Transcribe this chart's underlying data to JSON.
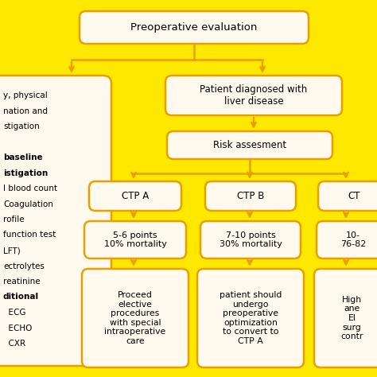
{
  "bg_color": "#FFE800",
  "box_fill": "#FFFAED",
  "box_edge": "#E8A000",
  "text_color": "#000000",
  "figsize": [
    4.74,
    4.74
  ],
  "dpi": 100,
  "left_text_lines": [
    [
      "y, physical",
      false
    ],
    [
      "nation and",
      false
    ],
    [
      "stigation",
      false
    ],
    [
      "",
      false
    ],
    [
      "baseline",
      true
    ],
    [
      "istigation",
      true
    ],
    [
      "l blood count",
      false
    ],
    [
      "Coagulation",
      false
    ],
    [
      "rofile",
      false
    ],
    [
      "function test",
      false
    ],
    [
      "LFT)",
      false
    ],
    [
      "ectrolytes",
      false
    ],
    [
      "reatinine",
      false
    ],
    [
      "ditional",
      true
    ],
    [
      "  ECG",
      false
    ],
    [
      "  ECHO",
      false
    ],
    [
      "  CXR",
      false
    ]
  ]
}
